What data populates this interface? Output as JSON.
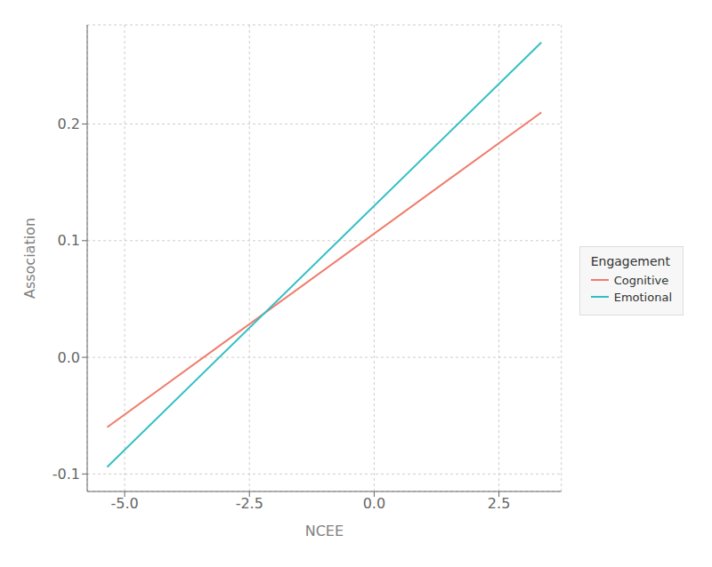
{
  "chart_data": {
    "type": "line",
    "xlabel": "NCEE",
    "ylabel": "Association",
    "legend_title": "Engagement",
    "x": [
      -5.35,
      3.35
    ],
    "series": [
      {
        "name": "Cognitive",
        "color": "#F07B6B",
        "values": [
          -0.06,
          0.21
        ]
      },
      {
        "name": "Emotional",
        "color": "#34BFC4",
        "values": [
          -0.094,
          0.27
        ]
      }
    ],
    "xlim": [
      -5.75,
      3.75
    ],
    "ylim": [
      -0.115,
      0.285
    ],
    "xticks": [
      {
        "value": -5.0,
        "label": "-5.0"
      },
      -2.5,
      {
        "value": 0.0,
        "label": "0.0"
      },
      2.5
    ],
    "yticks": [
      -0.1,
      {
        "value": 0.0,
        "label": "0.0"
      },
      0.1,
      0.2
    ],
    "grid": true,
    "legend": "right"
  }
}
